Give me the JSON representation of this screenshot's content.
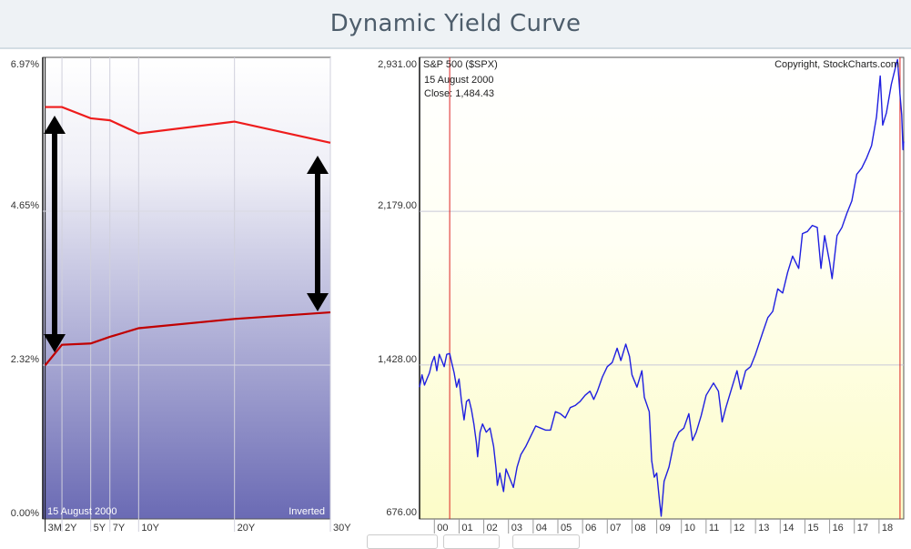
{
  "page": {
    "title": "Dynamic Yield Curve"
  },
  "colors": {
    "curve_current": "#ee1c1c",
    "curve_previous": "#c00000",
    "spx_line": "#1f1fe0",
    "marker_line": "#dd2222",
    "grid": "#c8c8d8"
  },
  "icons": [
    "double-arrow-icon",
    "double-arrow-icon"
  ],
  "chart_data": [
    {
      "type": "line",
      "title": "",
      "categories": [
        "3M",
        "2Y",
        "5Y",
        "7Y",
        "10Y",
        "20Y",
        "30Y"
      ],
      "x_maturity_years": [
        0.25,
        2,
        5,
        7,
        10,
        20,
        30
      ],
      "y_ticks": [
        "0.00%",
        "2.32%",
        "4.65%",
        "6.97%"
      ],
      "ylim": [
        0,
        6.97
      ],
      "grid": true,
      "date_label": "15  August 2000",
      "status_label": "Inverted",
      "series": [
        {
          "values": [
            6.22,
            6.22,
            6.05,
            6.02,
            5.82,
            6.0,
            5.68
          ]
        },
        {
          "values": [
            2.32,
            2.63,
            2.65,
            2.75,
            2.88,
            3.02,
            3.12
          ]
        }
      ]
    },
    {
      "type": "line",
      "title": "S&P 500 ($SPX)",
      "copyright": "Copyright, StockCharts.com",
      "info_date": "15  August 2000",
      "info_close": "Close: 1,484.43",
      "y_ticks": [
        {
          "label": "676.00",
          "value": 676
        },
        {
          "label": "1,428.00",
          "value": 1428
        },
        {
          "label": "2,179.00",
          "value": 2179
        },
        {
          "label": "2,931.00",
          "value": 2931
        }
      ],
      "ylim": [
        676,
        2931
      ],
      "x_tick_labels": [
        "00",
        "01",
        "02",
        "03",
        "04",
        "05",
        "06",
        "07",
        "08",
        "09",
        "10",
        "11",
        "12",
        "13",
        "14",
        "15",
        "16",
        "17",
        "18"
      ],
      "x_start_year": 1999.4,
      "x_end_year": 2019.0,
      "grid": true,
      "marker_dates": [
        2000.62,
        2018.85
      ],
      "points": [
        [
          1999.4,
          1320
        ],
        [
          1999.5,
          1380
        ],
        [
          1999.6,
          1330
        ],
        [
          1999.7,
          1360
        ],
        [
          1999.8,
          1390
        ],
        [
          1999.9,
          1440
        ],
        [
          2000.0,
          1470
        ],
        [
          2000.1,
          1400
        ],
        [
          2000.2,
          1480
        ],
        [
          2000.3,
          1450
        ],
        [
          2000.4,
          1420
        ],
        [
          2000.5,
          1480
        ],
        [
          2000.62,
          1484
        ],
        [
          2000.7,
          1440
        ],
        [
          2000.8,
          1390
        ],
        [
          2000.9,
          1320
        ],
        [
          2001.0,
          1360
        ],
        [
          2001.1,
          1250
        ],
        [
          2001.2,
          1160
        ],
        [
          2001.3,
          1250
        ],
        [
          2001.4,
          1260
        ],
        [
          2001.5,
          1210
        ],
        [
          2001.6,
          1140
        ],
        [
          2001.7,
          1050
        ],
        [
          2001.75,
          980
        ],
        [
          2001.85,
          1100
        ],
        [
          2001.95,
          1140
        ],
        [
          2002.1,
          1100
        ],
        [
          2002.25,
          1120
        ],
        [
          2002.4,
          1030
        ],
        [
          2002.5,
          920
        ],
        [
          2002.55,
          840
        ],
        [
          2002.65,
          900
        ],
        [
          2002.8,
          810
        ],
        [
          2002.9,
          920
        ],
        [
          2003.1,
          860
        ],
        [
          2003.2,
          830
        ],
        [
          2003.35,
          930
        ],
        [
          2003.5,
          990
        ],
        [
          2003.7,
          1030
        ],
        [
          2003.9,
          1080
        ],
        [
          2004.1,
          1130
        ],
        [
          2004.3,
          1120
        ],
        [
          2004.5,
          1110
        ],
        [
          2004.7,
          1110
        ],
        [
          2004.9,
          1200
        ],
        [
          2005.1,
          1190
        ],
        [
          2005.3,
          1170
        ],
        [
          2005.5,
          1220
        ],
        [
          2005.7,
          1230
        ],
        [
          2005.9,
          1250
        ],
        [
          2006.1,
          1280
        ],
        [
          2006.3,
          1300
        ],
        [
          2006.45,
          1260
        ],
        [
          2006.6,
          1300
        ],
        [
          2006.8,
          1370
        ],
        [
          2007.0,
          1420
        ],
        [
          2007.2,
          1440
        ],
        [
          2007.4,
          1510
        ],
        [
          2007.55,
          1450
        ],
        [
          2007.75,
          1530
        ],
        [
          2007.9,
          1470
        ],
        [
          2008.0,
          1380
        ],
        [
          2008.2,
          1320
        ],
        [
          2008.4,
          1400
        ],
        [
          2008.5,
          1270
        ],
        [
          2008.7,
          1200
        ],
        [
          2008.8,
          960
        ],
        [
          2008.9,
          880
        ],
        [
          2009.0,
          900
        ],
        [
          2009.1,
          780
        ],
        [
          2009.18,
          690
        ],
        [
          2009.3,
          860
        ],
        [
          2009.5,
          930
        ],
        [
          2009.7,
          1050
        ],
        [
          2009.9,
          1100
        ],
        [
          2010.1,
          1120
        ],
        [
          2010.3,
          1190
        ],
        [
          2010.45,
          1060
        ],
        [
          2010.6,
          1100
        ],
        [
          2010.8,
          1180
        ],
        [
          2011.0,
          1280
        ],
        [
          2011.3,
          1340
        ],
        [
          2011.5,
          1300
        ],
        [
          2011.65,
          1150
        ],
        [
          2011.8,
          1220
        ],
        [
          2012.0,
          1300
        ],
        [
          2012.25,
          1400
        ],
        [
          2012.4,
          1310
        ],
        [
          2012.6,
          1400
        ],
        [
          2012.8,
          1420
        ],
        [
          2013.0,
          1480
        ],
        [
          2013.3,
          1590
        ],
        [
          2013.5,
          1660
        ],
        [
          2013.7,
          1690
        ],
        [
          2013.9,
          1800
        ],
        [
          2014.1,
          1780
        ],
        [
          2014.3,
          1880
        ],
        [
          2014.5,
          1960
        ],
        [
          2014.75,
          1900
        ],
        [
          2014.9,
          2070
        ],
        [
          2015.1,
          2080
        ],
        [
          2015.3,
          2110
        ],
        [
          2015.5,
          2100
        ],
        [
          2015.65,
          1900
        ],
        [
          2015.8,
          2060
        ],
        [
          2016.0,
          1930
        ],
        [
          2016.1,
          1850
        ],
        [
          2016.3,
          2060
        ],
        [
          2016.5,
          2100
        ],
        [
          2016.7,
          2170
        ],
        [
          2016.9,
          2230
        ],
        [
          2017.1,
          2360
        ],
        [
          2017.3,
          2390
        ],
        [
          2017.5,
          2440
        ],
        [
          2017.7,
          2500
        ],
        [
          2017.9,
          2640
        ],
        [
          2018.05,
          2840
        ],
        [
          2018.15,
          2600
        ],
        [
          2018.3,
          2660
        ],
        [
          2018.5,
          2800
        ],
        [
          2018.7,
          2900
        ],
        [
          2018.75,
          2920
        ],
        [
          2018.85,
          2750
        ],
        [
          2018.92,
          2650
        ],
        [
          2018.97,
          2480
        ],
        [
          2019.0,
          2520
        ]
      ]
    }
  ]
}
